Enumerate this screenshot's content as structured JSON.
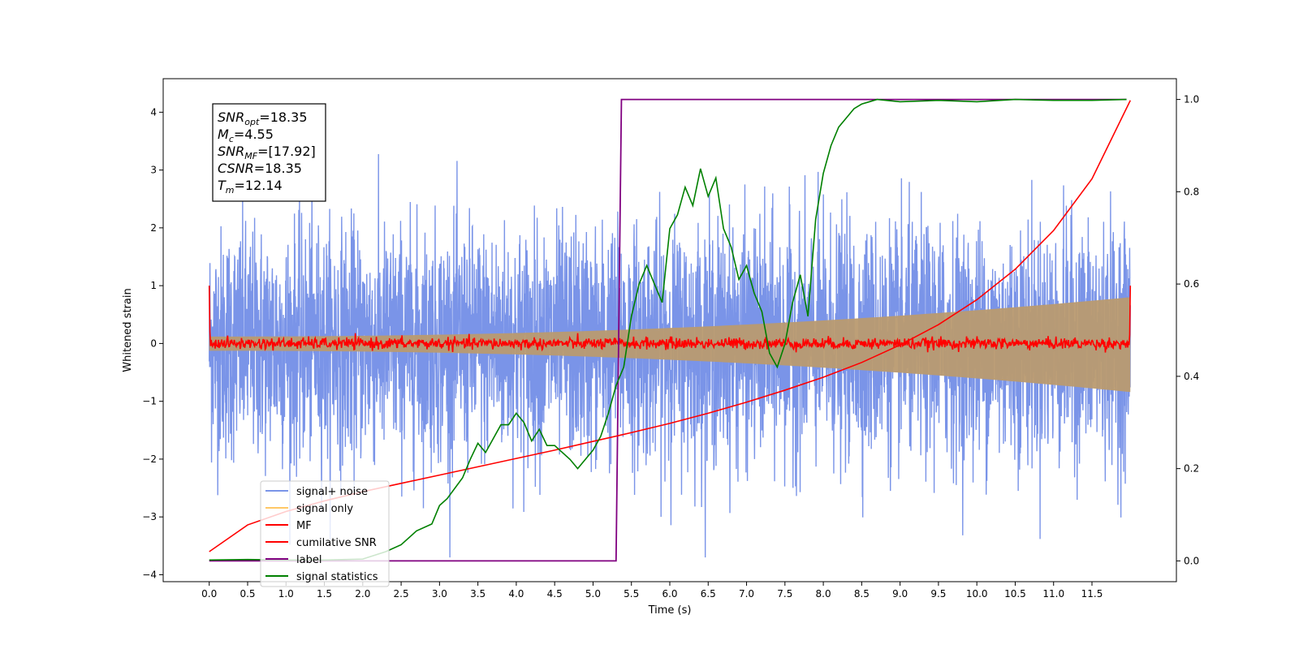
{
  "chart_data": {
    "type": "line",
    "xlabel": "Time (s)",
    "ylabel": "Whitened strain",
    "xlim": [
      -0.6,
      12.6
    ],
    "ylim": [
      -4.12,
      4.58
    ],
    "y2lim": [
      -0.045,
      1.045
    ],
    "xticks": [
      "0.0",
      "0.5",
      "1.0",
      "1.5",
      "2.0",
      "2.5",
      "3.0",
      "3.5",
      "4.0",
      "4.5",
      "5.0",
      "5.5",
      "6.0",
      "6.5",
      "7.0",
      "7.5",
      "8.0",
      "8.5",
      "9.0",
      "9.5",
      "10.0",
      "10.5",
      "11.0",
      "11.5"
    ],
    "yticks": [
      "4",
      "3",
      "2",
      "1",
      "0",
      "−1",
      "−2",
      "−3",
      "−4"
    ],
    "y2ticks": [
      "1.0",
      "0.8",
      "0.6",
      "0.4",
      "0.2",
      "0.0"
    ],
    "legend_position": "lower-left",
    "info_box": {
      "lines": [
        {
          "main": "SNR",
          "sub": "opt",
          "value": "=18.35"
        },
        {
          "main": "M",
          "sub": "c",
          "value": "=4.55"
        },
        {
          "main": "SNR",
          "sub": "MF",
          "value": "=[17.92]"
        },
        {
          "main": "CSNR",
          "sub": "",
          "value": "=18.35"
        },
        {
          "main": "T",
          "sub": "m",
          "value": "=12.14"
        }
      ]
    },
    "series": [
      {
        "name": "signal+ noise",
        "color": "#7a94e8",
        "axis": "left",
        "style": "noise",
        "x_range": [
          0,
          12
        ],
        "amplitude_std": 1.0,
        "min": -3.7,
        "max": 4.2
      },
      {
        "name": "signal only",
        "color": "#ffc866",
        "axis": "left",
        "style": "envelope",
        "x_range": [
          0,
          12
        ],
        "envelope_start": 0.12,
        "envelope_end": 0.8
      },
      {
        "name": "MF",
        "color": "#ff0000",
        "axis": "left",
        "style": "noise",
        "x_range": [
          0,
          12
        ],
        "baseline": 0.0,
        "start_value": 1.0,
        "end_value": 1.0
      },
      {
        "name": "cumilative SNR",
        "color": "#ff0000",
        "axis": "right",
        "x": [
          0.0,
          0.5,
          1.0,
          1.5,
          2.0,
          2.5,
          3.0,
          3.5,
          4.0,
          4.5,
          5.0,
          5.5,
          6.0,
          6.5,
          7.0,
          7.5,
          8.0,
          8.5,
          9.0,
          9.5,
          10.0,
          10.5,
          11.0,
          11.5,
          12.0
        ],
        "values": [
          0.02,
          0.078,
          0.107,
          0.13,
          0.15,
          0.168,
          0.186,
          0.204,
          0.222,
          0.24,
          0.259,
          0.278,
          0.298,
          0.32,
          0.344,
          0.37,
          0.398,
          0.43,
          0.468,
          0.512,
          0.566,
          0.632,
          0.716,
          0.828,
          0.998
        ]
      },
      {
        "name": "label",
        "color": "#800080",
        "axis": "right",
        "x": [
          0.0,
          5.3,
          5.37,
          11.95
        ],
        "values": [
          0.0,
          0.0,
          1.0,
          1.0
        ]
      },
      {
        "name": "signal statistics",
        "color": "#008000",
        "axis": "right",
        "x": [
          0.0,
          0.5,
          1.0,
          1.5,
          2.0,
          2.3,
          2.5,
          2.7,
          2.9,
          3.0,
          3.1,
          3.3,
          3.4,
          3.5,
          3.6,
          3.8,
          3.9,
          4.0,
          4.1,
          4.2,
          4.3,
          4.4,
          4.5,
          4.7,
          4.8,
          4.9,
          5.0,
          5.1,
          5.2,
          5.3,
          5.4,
          5.5,
          5.6,
          5.7,
          5.8,
          5.9,
          6.0,
          6.1,
          6.2,
          6.3,
          6.4,
          6.5,
          6.6,
          6.7,
          6.8,
          6.9,
          7.0,
          7.1,
          7.2,
          7.3,
          7.4,
          7.5,
          7.6,
          7.7,
          7.8,
          7.9,
          8.0,
          8.1,
          8.2,
          8.3,
          8.4,
          8.5,
          8.6,
          8.7,
          9.0,
          9.5,
          10.0,
          10.5,
          11.0,
          11.5,
          11.95
        ],
        "values": [
          0.002,
          0.003,
          0.002,
          0.002,
          0.004,
          0.02,
          0.035,
          0.065,
          0.08,
          0.12,
          0.135,
          0.18,
          0.22,
          0.255,
          0.235,
          0.295,
          0.295,
          0.32,
          0.3,
          0.26,
          0.285,
          0.25,
          0.25,
          0.22,
          0.2,
          0.22,
          0.24,
          0.27,
          0.32,
          0.38,
          0.42,
          0.53,
          0.6,
          0.64,
          0.6,
          0.56,
          0.72,
          0.75,
          0.81,
          0.77,
          0.85,
          0.79,
          0.83,
          0.72,
          0.68,
          0.61,
          0.64,
          0.58,
          0.54,
          0.45,
          0.42,
          0.47,
          0.56,
          0.62,
          0.53,
          0.74,
          0.84,
          0.9,
          0.94,
          0.96,
          0.98,
          0.99,
          0.995,
          1.0,
          0.995,
          0.998,
          0.995,
          1.0,
          0.998,
          0.998,
          1.0
        ]
      }
    ]
  }
}
